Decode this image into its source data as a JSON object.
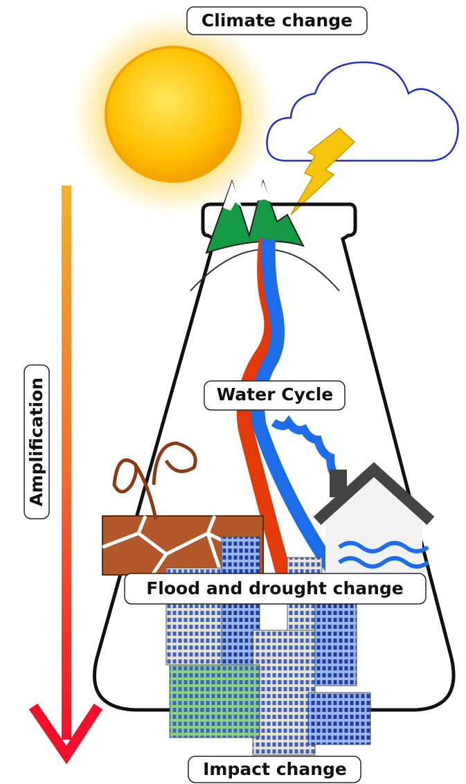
{
  "labels": {
    "top": "Climate change",
    "middle": "Water Cycle",
    "lower": "Flood and drought change",
    "bottom": "Impact change",
    "side": "Amplification"
  }
}
